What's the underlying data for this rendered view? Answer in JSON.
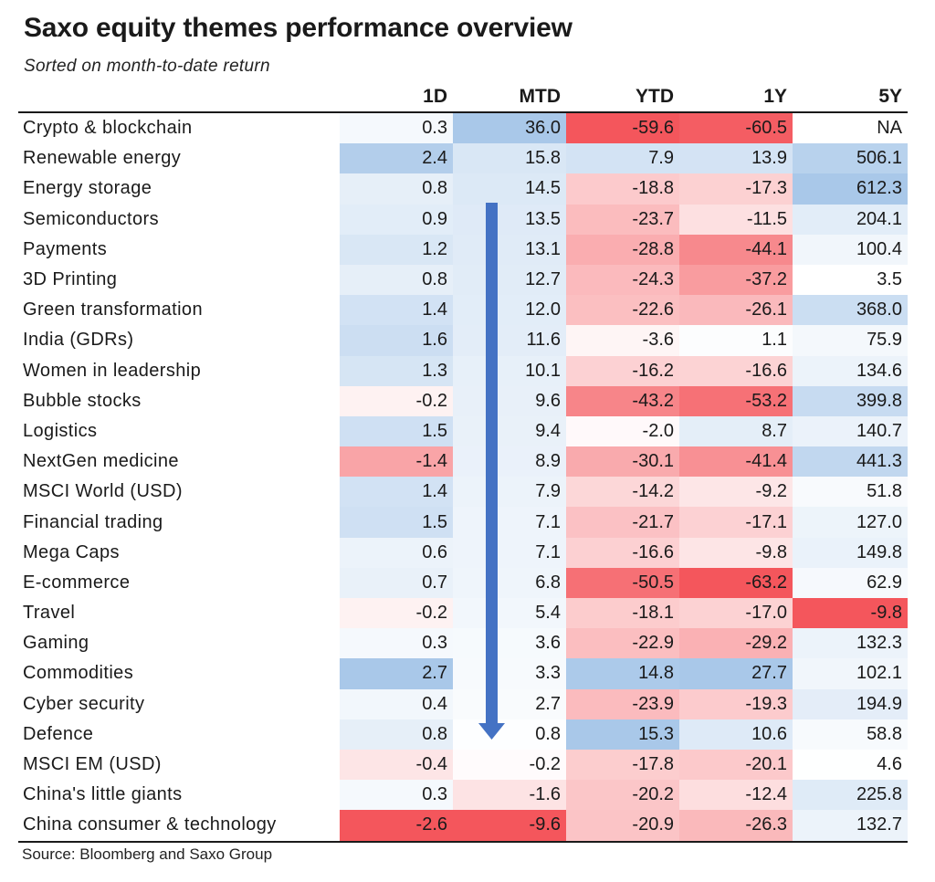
{
  "title": "Saxo equity themes performance overview",
  "subtitle": "Sorted on month-to-date return",
  "source": "Source: Bloomberg and Saxo Group",
  "colors": {
    "positive": "#a9c8e9",
    "negative": "#f4565c",
    "neutral": "#ffffff",
    "arrow": "#4472c4",
    "text": "#1a1a1a"
  },
  "chart_data": {
    "type": "table",
    "title": "Saxo equity themes performance overview",
    "subtitle": "Sorted on month-to-date return",
    "columns": [
      "1D",
      "MTD",
      "YTD",
      "1Y",
      "5Y"
    ],
    "rows": [
      {
        "theme": "Crypto & blockchain",
        "values": [
          "0.3",
          "36.0",
          "-59.6",
          "-60.5",
          "NA"
        ]
      },
      {
        "theme": "Renewable energy",
        "values": [
          "2.4",
          "15.8",
          "7.9",
          "13.9",
          "506.1"
        ]
      },
      {
        "theme": "Energy storage",
        "values": [
          "0.8",
          "14.5",
          "-18.8",
          "-17.3",
          "612.3"
        ]
      },
      {
        "theme": "Semiconductors",
        "values": [
          "0.9",
          "13.5",
          "-23.7",
          "-11.5",
          "204.1"
        ]
      },
      {
        "theme": "Payments",
        "values": [
          "1.2",
          "13.1",
          "-28.8",
          "-44.1",
          "100.4"
        ]
      },
      {
        "theme": "3D Printing",
        "values": [
          "0.8",
          "12.7",
          "-24.3",
          "-37.2",
          "3.5"
        ]
      },
      {
        "theme": "Green transformation",
        "values": [
          "1.4",
          "12.0",
          "-22.6",
          "-26.1",
          "368.0"
        ]
      },
      {
        "theme": "India (GDRs)",
        "values": [
          "1.6",
          "11.6",
          "-3.6",
          "1.1",
          "75.9"
        ]
      },
      {
        "theme": "Women in leadership",
        "values": [
          "1.3",
          "10.1",
          "-16.2",
          "-16.6",
          "134.6"
        ]
      },
      {
        "theme": "Bubble stocks",
        "values": [
          "-0.2",
          "9.6",
          "-43.2",
          "-53.2",
          "399.8"
        ]
      },
      {
        "theme": "Logistics",
        "values": [
          "1.5",
          "9.4",
          "-2.0",
          "8.7",
          "140.7"
        ]
      },
      {
        "theme": "NextGen medicine",
        "values": [
          "-1.4",
          "8.9",
          "-30.1",
          "-41.4",
          "441.3"
        ]
      },
      {
        "theme": "MSCI World (USD)",
        "values": [
          "1.4",
          "7.9",
          "-14.2",
          "-9.2",
          "51.8"
        ]
      },
      {
        "theme": "Financial trading",
        "values": [
          "1.5",
          "7.1",
          "-21.7",
          "-17.1",
          "127.0"
        ]
      },
      {
        "theme": "Mega Caps",
        "values": [
          "0.6",
          "7.1",
          "-16.6",
          "-9.8",
          "149.8"
        ]
      },
      {
        "theme": "E-commerce",
        "values": [
          "0.7",
          "6.8",
          "-50.5",
          "-63.2",
          "62.9"
        ]
      },
      {
        "theme": "Travel",
        "values": [
          "-0.2",
          "5.4",
          "-18.1",
          "-17.0",
          "-9.8"
        ]
      },
      {
        "theme": "Gaming",
        "values": [
          "0.3",
          "3.6",
          "-22.9",
          "-29.2",
          "132.3"
        ]
      },
      {
        "theme": "Commodities",
        "values": [
          "2.7",
          "3.3",
          "14.8",
          "27.7",
          "102.1"
        ]
      },
      {
        "theme": "Cyber security",
        "values": [
          "0.4",
          "2.7",
          "-23.9",
          "-19.3",
          "194.9"
        ]
      },
      {
        "theme": "Defence",
        "values": [
          "0.8",
          "0.8",
          "15.3",
          "10.6",
          "58.8"
        ]
      },
      {
        "theme": "MSCI EM (USD)",
        "values": [
          "-0.4",
          "-0.2",
          "-17.8",
          "-20.1",
          "4.6"
        ]
      },
      {
        "theme": "China's little giants",
        "values": [
          "0.3",
          "-1.6",
          "-20.2",
          "-12.4",
          "225.8"
        ]
      },
      {
        "theme": "China consumer & technology",
        "values": [
          "-2.6",
          "-9.6",
          "-20.9",
          "-26.3",
          "132.7"
        ]
      }
    ]
  }
}
